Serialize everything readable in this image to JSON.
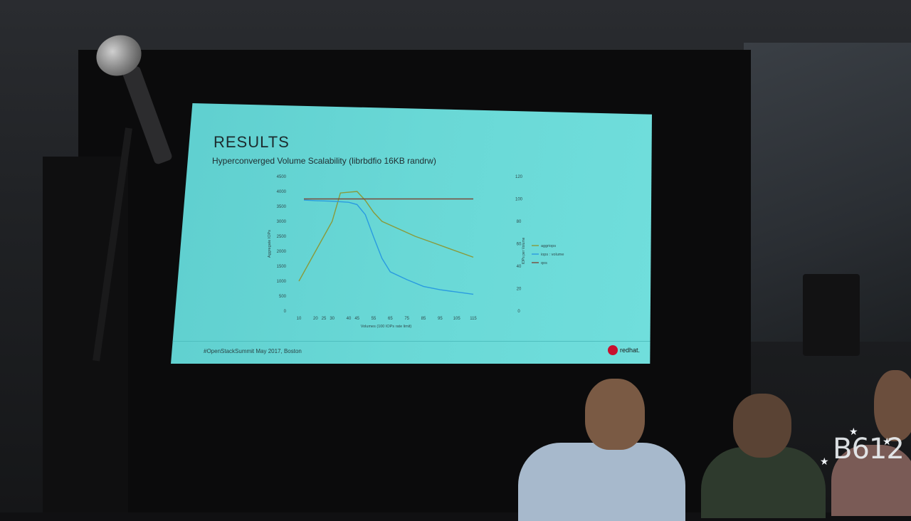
{
  "slide": {
    "title": "RESULTS",
    "subtitle": "Hyperconverged Volume Scalability (librbdfio 16KB randrw)",
    "footer": "#OpenStackSummit May 2017, Boston",
    "brand": "redhat."
  },
  "watermark": "B612",
  "chart_data": {
    "type": "line",
    "x": [
      10,
      15,
      20,
      25,
      30,
      35,
      40,
      45,
      50,
      55,
      60,
      65,
      70,
      75,
      80,
      85,
      90,
      95,
      100,
      105,
      110,
      115
    ],
    "x_ticks": [
      "10",
      "20",
      "25",
      "30",
      "40",
      "45",
      "55",
      "65",
      "75",
      "85",
      "95",
      "105",
      "115"
    ],
    "x_tick_values": [
      10,
      20,
      25,
      30,
      40,
      45,
      55,
      65,
      75,
      85,
      95,
      105,
      115
    ],
    "xlabel": "Volumes (100 IOPs rate limit)",
    "ylabel": "Aggregate IOPs",
    "y2label": "IOPs per Volume",
    "ylim": [
      0,
      4500
    ],
    "y_ticks": [
      "0",
      "500",
      "1000",
      "1500",
      "2000",
      "2500",
      "3000",
      "3500",
      "4000",
      "4500"
    ],
    "y2lim": [
      0,
      120
    ],
    "y2_ticks": [
      "0",
      "20",
      "40",
      "60",
      "80",
      "100",
      "120"
    ],
    "series": [
      {
        "name": "aggriops",
        "axis": "left",
        "color": "#8a9a3a",
        "values": [
          1000,
          2000,
          2500,
          3000,
          3950,
          4000,
          3700,
          3300,
          3000,
          2750,
          2500,
          2300,
          2100,
          1800
        ],
        "x": [
          10,
          20,
          25,
          30,
          35,
          45,
          50,
          55,
          60,
          70,
          80,
          90,
          100,
          115
        ]
      },
      {
        "name": "iops : volume",
        "axis": "right",
        "color": "#2a9be0",
        "values": [
          99,
          98.5,
          98,
          97,
          95,
          86,
          66,
          47,
          35,
          28,
          22,
          19,
          15
        ],
        "x": [
          13,
          20,
          30,
          40,
          45,
          50,
          55,
          60,
          65,
          75,
          85,
          95,
          115
        ]
      },
      {
        "name": "qos",
        "axis": "right",
        "color": "#7a4a3a",
        "values": [
          100,
          100
        ],
        "x": [
          13,
          115
        ]
      }
    ],
    "grid": false,
    "legend": "right"
  }
}
